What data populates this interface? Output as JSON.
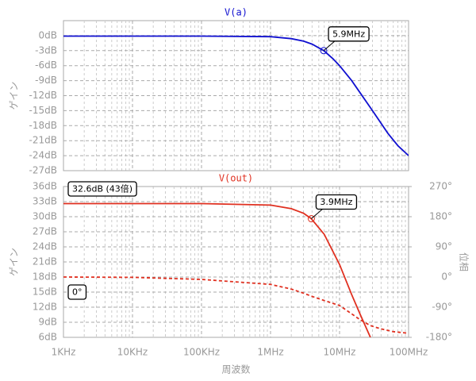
{
  "chart_data": [
    {
      "type": "line",
      "title": "V(a)",
      "y_label": "ゲイン",
      "color": "#1010d0",
      "grid": true,
      "ylim": [
        -27,
        3
      ],
      "yticks": [
        {
          "value": 0,
          "label": "0dB"
        },
        {
          "value": -3,
          "label": "-3dB"
        },
        {
          "value": -6,
          "label": "-6dB"
        },
        {
          "value": -9,
          "label": "-9dB"
        },
        {
          "value": -12,
          "label": "-12dB"
        },
        {
          "value": -15,
          "label": "-15dB"
        },
        {
          "value": -18,
          "label": "-18dB"
        },
        {
          "value": -21,
          "label": "-21dB"
        },
        {
          "value": -24,
          "label": "-24dB"
        },
        {
          "value": -27,
          "label": "-27dB"
        }
      ],
      "x": [
        1000,
        10000,
        100000,
        1000000,
        2000000,
        3000000,
        4000000,
        5900000,
        8000000,
        10000000,
        15000000,
        20000000,
        30000000,
        50000000,
        70000000,
        100000000
      ],
      "values": [
        -0.1,
        -0.1,
        -0.1,
        -0.2,
        -0.6,
        -1.1,
        -1.7,
        -3,
        -4.6,
        -6,
        -9,
        -11.5,
        -15,
        -19.5,
        -22,
        -24
      ],
      "annotations": [
        {
          "text": "5.9MHz",
          "x": 5900000,
          "y": -3
        }
      ]
    },
    {
      "type": "line",
      "title": "V(out)",
      "y_label": "ゲイン",
      "y2_label": "位相",
      "x_label": "周波数",
      "color": "#e03020",
      "grid": true,
      "xscale": "log",
      "xlim": [
        1000,
        100000000
      ],
      "xticks": [
        {
          "value": 1000,
          "label": "1KHz"
        },
        {
          "value": 10000,
          "label": "10KHz"
        },
        {
          "value": 100000,
          "label": "100KHz"
        },
        {
          "value": 1000000,
          "label": "1MHz"
        },
        {
          "value": 10000000,
          "label": "10MHz"
        },
        {
          "value": 100000000,
          "label": "100MHz"
        }
      ],
      "ylim": [
        6,
        36
      ],
      "yticks": [
        {
          "value": 36,
          "label": "36dB"
        },
        {
          "value": 33,
          "label": "33dB"
        },
        {
          "value": 30,
          "label": "30dB"
        },
        {
          "value": 27,
          "label": "27dB"
        },
        {
          "value": 24,
          "label": "24dB"
        },
        {
          "value": 21,
          "label": "21dB"
        },
        {
          "value": 18,
          "label": "18dB"
        },
        {
          "value": 15,
          "label": "15dB"
        },
        {
          "value": 12,
          "label": "12dB"
        },
        {
          "value": 9,
          "label": "9dB"
        },
        {
          "value": 6,
          "label": "6dB"
        }
      ],
      "y2lim": [
        -180,
        270
      ],
      "y2ticks": [
        {
          "value": 270,
          "label": "270°"
        },
        {
          "value": 180,
          "label": "180°"
        },
        {
          "value": 90,
          "label": "90°"
        },
        {
          "value": 0,
          "label": "0°"
        },
        {
          "value": -90,
          "label": "-90°"
        },
        {
          "value": -180,
          "label": "-180°"
        }
      ],
      "x": [
        1000,
        10000,
        100000,
        1000000,
        2000000,
        3000000,
        3900000,
        6000000,
        10000000,
        15000000,
        20000000,
        28000000,
        40000000,
        60000000,
        100000000
      ],
      "series": [
        {
          "color": "#e03020",
          "style": "solid",
          "values": [
            32.6,
            32.6,
            32.6,
            32.3,
            31.6,
            30.7,
            29.6,
            26.5,
            20.5,
            14.5,
            10.5,
            6,
            null,
            null,
            null
          ]
        },
        {
          "color": "#e03020",
          "style": "dashed",
          "axis": "y2",
          "values": [
            0,
            -1,
            -7,
            -22,
            -36,
            -48,
            -57,
            -70,
            -85,
            -110,
            -128,
            -145,
            -155,
            -163,
            -168
          ]
        }
      ],
      "annotations": [
        {
          "text": "3.9MHz",
          "x": 3900000,
          "y": 29.6
        },
        {
          "text": "32.6dB (43倍)",
          "x": 1000,
          "y": 32.6
        },
        {
          "text": "0°",
          "x": 1000,
          "y": 0,
          "axis": "y2"
        }
      ]
    }
  ]
}
